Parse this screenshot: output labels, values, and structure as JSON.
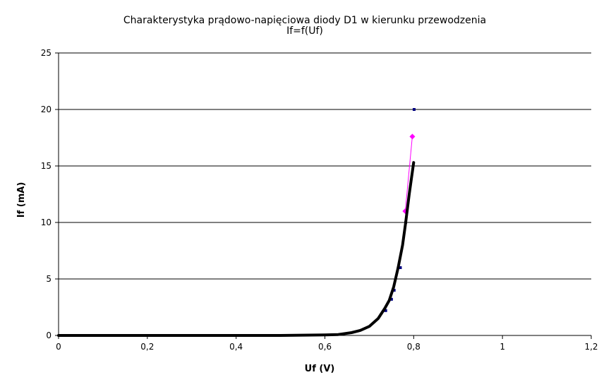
{
  "chart_data": {
    "type": "scatter",
    "title": "Charakterystyka prądowo-napięciowa diody D1 w kierunku przewodzenia",
    "subtitle": "If=f(Uf)",
    "xlabel": "Uf (V)",
    "ylabel": "If (mA)",
    "xlim": [
      0,
      1.2
    ],
    "ylim": [
      0,
      25
    ],
    "x_ticks": [
      0,
      0.2,
      0.4,
      0.6,
      0.8,
      1,
      1.2
    ],
    "x_tick_labels": [
      "0",
      "0,2",
      "0,4",
      "0,6",
      "0,8",
      "1",
      "1,2"
    ],
    "y_ticks": [
      0,
      5,
      10,
      15,
      20,
      25
    ],
    "y_tick_labels": [
      "0",
      "5",
      "10",
      "15",
      "20",
      "25"
    ],
    "grid": "horizontal",
    "legend": "none",
    "series": [
      {
        "style": "markers",
        "color": "#000080",
        "points": [
          [
            0.737,
            2.2
          ],
          [
            0.75,
            3.2
          ],
          [
            0.756,
            4.0
          ],
          [
            0.77,
            6.0
          ],
          [
            0.782,
            10.0
          ],
          [
            0.801,
            20.0
          ]
        ]
      },
      {
        "style": "line-markers",
        "color": "#ff00ff",
        "points": [
          [
            0.781,
            11.0
          ],
          [
            0.797,
            17.6
          ]
        ]
      },
      {
        "style": "trendline",
        "color": "#000000",
        "points": [
          [
            0,
            0
          ],
          [
            0.3,
            0
          ],
          [
            0.5,
            0
          ],
          [
            0.6,
            0.05
          ],
          [
            0.63,
            0.08
          ],
          [
            0.66,
            0.25
          ],
          [
            0.68,
            0.45
          ],
          [
            0.7,
            0.8
          ],
          [
            0.72,
            1.5
          ],
          [
            0.735,
            2.4
          ],
          [
            0.745,
            3.1
          ],
          [
            0.755,
            4.3
          ],
          [
            0.765,
            6.0
          ],
          [
            0.775,
            8.0
          ],
          [
            0.782,
            10.0
          ],
          [
            0.79,
            12.5
          ],
          [
            0.8,
            15.3
          ]
        ]
      }
    ]
  }
}
